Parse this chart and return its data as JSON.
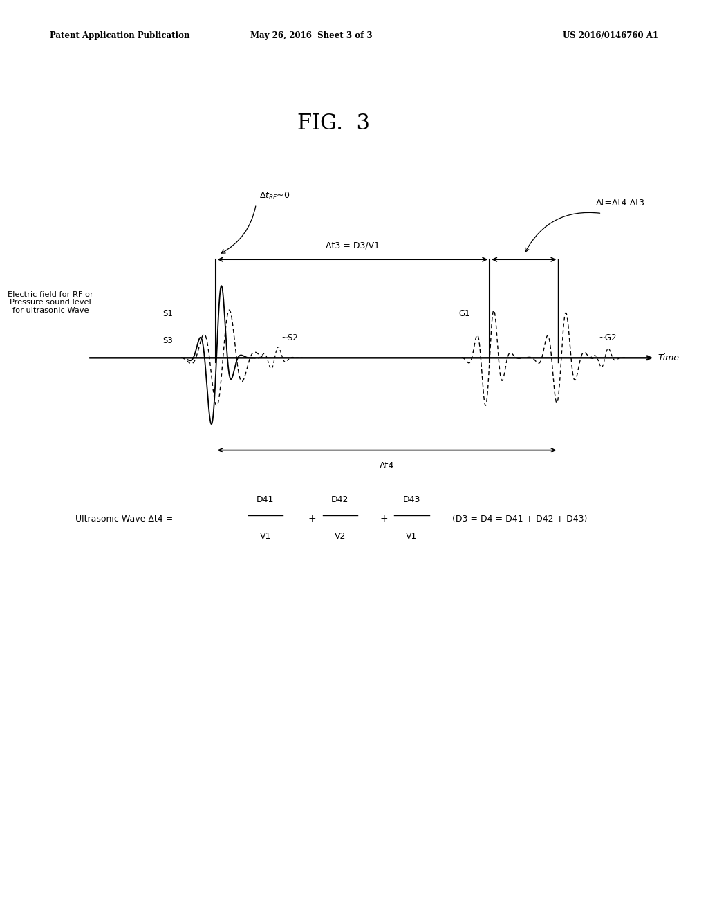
{
  "background_color": "#ffffff",
  "fig_width": 10.24,
  "fig_height": 13.2,
  "title": "FIG.  3",
  "header_left": "Patent Application Publication",
  "header_mid": "May 26, 2016  Sheet 3 of 3",
  "header_right": "US 2016/0146760 A1",
  "label_ylabel": "Electric field for RF or\nPressure sound level\nfor ultrasonic Wave",
  "label_time": "Time",
  "label_S1": "S1",
  "label_S3": "S3",
  "label_S2": "~S2",
  "label_G1": "G1",
  "label_G2": "~G2",
  "label_dt3": "Δt3 = D3/V1",
  "label_dt4": "Δt4",
  "label_dtRF": "Δt_RF~0",
  "label_dt_diff": "Δt=Δt4-Δt3",
  "formula_prefix": "Ultrasonic Wave Δt4 = ",
  "fractions": [
    [
      "D41",
      "V1"
    ],
    [
      "D42",
      "V2"
    ],
    [
      "D43",
      "V1"
    ]
  ],
  "formula_suffix": "(D3 = D4 = D41 + D42 + D43)"
}
